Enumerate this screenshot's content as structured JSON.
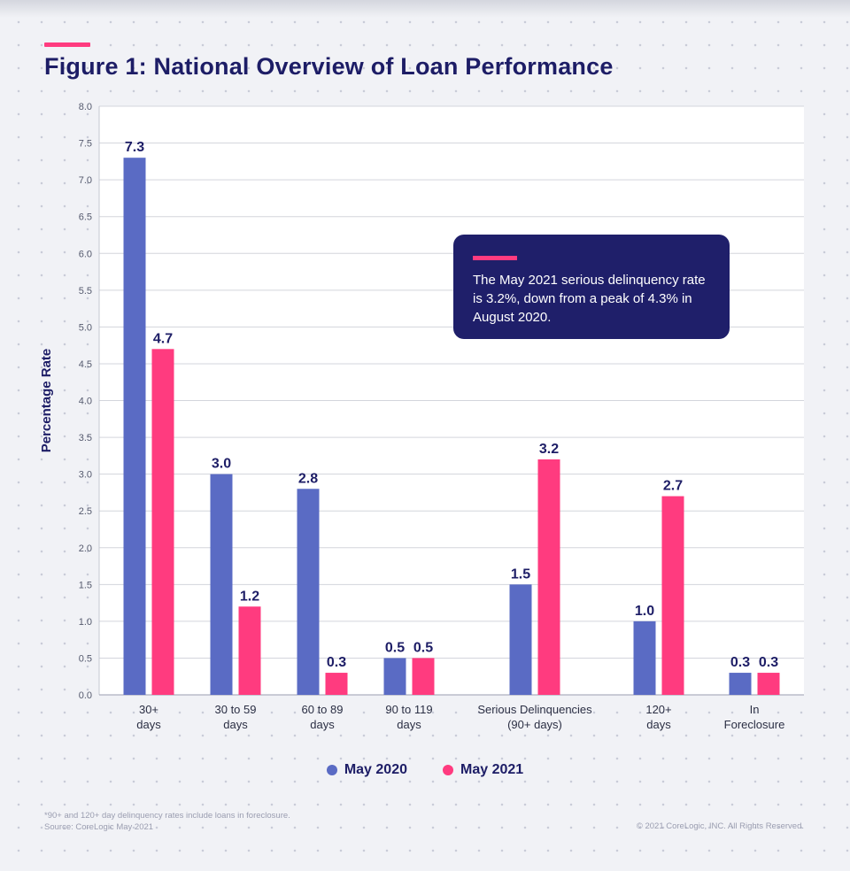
{
  "title": "Figure 1: National Overview of Loan Performance",
  "colors": {
    "accent": "#ff3b7f",
    "navy": "#1d1d66",
    "may2020": "#5a6bc4",
    "may2021": "#ff3b7f"
  },
  "callout": {
    "text": "The May 2021 serious delinquency rate is 3.2%, down from a peak of 4.3% in August 2020."
  },
  "legend": [
    {
      "label": "May 2020",
      "color": "#5a6bc4"
    },
    {
      "label": "May 2021",
      "color": "#ff3b7f"
    }
  ],
  "footnote": {
    "line1": "*90+ and 120+ day delinquency rates include loans in foreclosure.",
    "line2": "Source: CoreLogic May 2021"
  },
  "copyright": "© 2021 CoreLogic, INC. All Rights Reserved.",
  "chart_data": {
    "type": "bar",
    "ylabel": "Percentage Rate",
    "xlabel": "",
    "ylim": [
      0,
      8
    ],
    "yticks": [
      "0.0",
      "0.5",
      "1.0",
      "1.5",
      "2.0",
      "2.5",
      "3.0",
      "3.5",
      "4.0",
      "4.5",
      "5.0",
      "5.5",
      "6.0",
      "6.5",
      "7.0",
      "7.5",
      "8.0"
    ],
    "grid": true,
    "legend_position": "bottom",
    "categories": [
      [
        "30+",
        "days"
      ],
      [
        "30 to 59",
        "days"
      ],
      [
        "60 to 89",
        "days"
      ],
      [
        "90 to 119",
        "days"
      ],
      [
        "Serious Delinquencies",
        "(90+ days)"
      ],
      [
        "120+",
        "days"
      ],
      [
        "In",
        "Foreclosure"
      ]
    ],
    "series": [
      {
        "name": "May 2020",
        "values": [
          7.3,
          3.0,
          2.8,
          0.5,
          1.5,
          1.0,
          0.3
        ],
        "labels": [
          "7.3",
          "3.0",
          "2.8",
          "0.5",
          "1.5",
          "1.0",
          "0.3"
        ]
      },
      {
        "name": "May 2021",
        "values": [
          4.7,
          1.2,
          0.3,
          0.5,
          3.2,
          2.7,
          0.3
        ],
        "labels": [
          "4.7",
          "1.2",
          "0.3",
          "0.5",
          "3.2",
          "2.7",
          "0.3"
        ]
      }
    ]
  }
}
